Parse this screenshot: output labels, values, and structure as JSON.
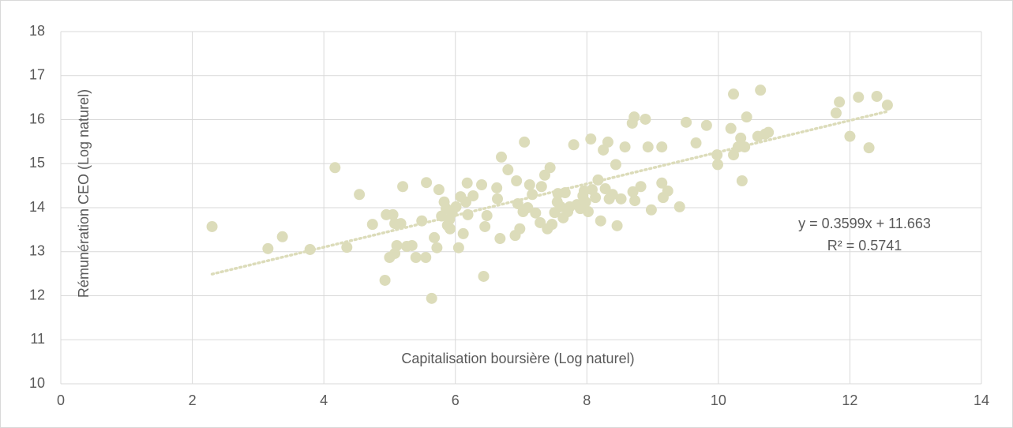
{
  "chart_data": {
    "type": "scatter",
    "x_label": "Capitalisation boursière (Log naturel)",
    "y_label": "Rémunération CEO (Log naturel)",
    "color": "#dcdcba",
    "x": [
      2.3,
      3.37,
      3.15,
      3.79,
      4.17,
      4.35,
      4.54,
      4.74,
      4.95,
      5.05,
      5.08,
      4.93,
      5.0,
      5.08,
      5.11,
      5.2,
      5.17,
      5.26,
      5.34,
      5.4,
      5.49,
      5.56,
      5.55,
      5.64,
      5.68,
      5.72,
      5.75,
      5.79,
      5.83,
      5.86,
      5.88,
      5.91,
      5.92,
      5.95,
      6.01,
      6.05,
      6.08,
      6.12,
      6.16,
      6.18,
      6.19,
      6.27,
      6.4,
      6.45,
      6.48,
      6.43,
      6.63,
      6.64,
      6.68,
      6.7,
      6.8,
      6.91,
      6.93,
      6.95,
      6.98,
      7.03,
      7.05,
      7.1,
      7.13,
      7.17,
      7.22,
      7.29,
      7.31,
      7.36,
      7.4,
      7.44,
      7.47,
      7.51,
      7.55,
      7.56,
      7.6,
      7.64,
      7.67,
      7.71,
      7.74,
      7.8,
      7.85,
      7.9,
      7.94,
      7.96,
      7.98,
      8.02,
      8.06,
      8.08,
      8.13,
      8.17,
      8.21,
      8.25,
      8.28,
      8.32,
      8.34,
      8.39,
      8.44,
      8.46,
      8.52,
      8.58,
      8.7,
      8.73,
      8.72,
      8.69,
      8.82,
      8.89,
      8.93,
      8.98,
      9.14,
      9.14,
      9.16,
      9.23,
      9.41,
      9.51,
      9.66,
      9.82,
      9.98,
      9.99,
      10.19,
      10.23,
      10.23,
      10.3,
      10.34,
      10.36,
      10.4,
      10.43,
      10.6,
      10.64,
      10.71,
      10.76,
      11.79,
      11.84,
      12.0,
      12.13,
      12.29,
      12.41,
      12.57
    ],
    "values": [
      13.57,
      13.34,
      13.07,
      13.05,
      14.91,
      13.1,
      14.3,
      13.62,
      13.84,
      13.84,
      13.64,
      12.35,
      12.87,
      12.96,
      13.14,
      14.48,
      13.64,
      13.12,
      13.14,
      12.87,
      13.7,
      14.57,
      12.87,
      11.94,
      13.32,
      13.09,
      14.41,
      13.81,
      14.13,
      13.98,
      13.6,
      13.73,
      13.52,
      13.88,
      14.02,
      13.09,
      14.25,
      13.41,
      14.13,
      14.56,
      13.84,
      14.27,
      14.52,
      13.57,
      13.82,
      12.44,
      14.45,
      14.2,
      13.3,
      15.15,
      14.86,
      13.37,
      14.61,
      14.09,
      13.52,
      13.91,
      15.49,
      14.0,
      14.52,
      14.3,
      13.88,
      13.66,
      14.48,
      14.74,
      13.52,
      14.91,
      13.62,
      13.89,
      14.13,
      14.32,
      14.02,
      13.77,
      14.34,
      13.91,
      14.02,
      15.43,
      14.07,
      13.98,
      14.27,
      14.38,
      14.13,
      13.91,
      15.56,
      14.41,
      14.23,
      14.63,
      13.7,
      15.31,
      14.43,
      15.49,
      14.2,
      14.3,
      14.98,
      13.59,
      14.2,
      15.38,
      14.36,
      14.16,
      16.06,
      15.92,
      14.48,
      16.01,
      15.38,
      13.95,
      15.38,
      14.56,
      14.23,
      14.38,
      14.02,
      15.94,
      15.47,
      15.87,
      15.2,
      14.98,
      15.8,
      15.2,
      16.58,
      15.38,
      15.58,
      14.61,
      15.38,
      16.06,
      15.62,
      16.67,
      15.67,
      15.71,
      16.15,
      16.4,
      15.62,
      16.51,
      15.36,
      16.53,
      16.33
    ],
    "trendline": {
      "slope": 0.3599,
      "intercept": 11.663,
      "label": "y = 0.3599x + 11.663",
      "r2_label": "R² = 0.5741"
    },
    "xlim": [
      0,
      14
    ],
    "xticks": [
      0,
      2,
      4,
      6,
      8,
      10,
      12,
      14
    ],
    "ylim": [
      10,
      18
    ],
    "yticks": [
      10,
      11,
      12,
      13,
      14,
      15,
      16,
      17,
      18
    ],
    "grid": true
  }
}
